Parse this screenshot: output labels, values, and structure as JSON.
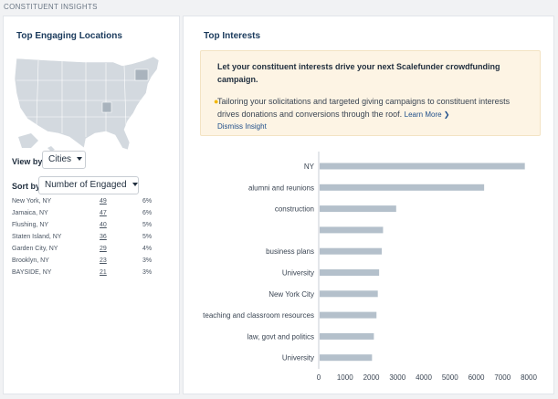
{
  "section_title": "CONSTITUENT INSIGHTS",
  "locations": {
    "title": "Top Engaging Locations",
    "view_by_label": "View by",
    "view_by_value": "Cities",
    "sort_by_label": "Sort by",
    "sort_by_value": "Number of Engaged",
    "rows": [
      {
        "name": "New York, NY",
        "count": "49",
        "pct": "6%"
      },
      {
        "name": "Jamaica, NY",
        "count": "47",
        "pct": "6%"
      },
      {
        "name": "Flushing, NY",
        "count": "40",
        "pct": "5%"
      },
      {
        "name": "Staten Island, NY",
        "count": "36",
        "pct": "5%"
      },
      {
        "name": "Garden City, NY",
        "count": "29",
        "pct": "4%"
      },
      {
        "name": "Brooklyn, NY",
        "count": "23",
        "pct": "3%"
      },
      {
        "name": "BAYSIDE, NY",
        "count": "21",
        "pct": "3%"
      }
    ]
  },
  "interests": {
    "title": "Top Interests",
    "insight_headline": "Let your constituent interests drive your next Scalefunder crowdfunding campaign.",
    "insight_body": "Tailoring your solicitations and targeted giving campaigns to constituent interests drives donations and conversions through the roof.",
    "learn_more": "Learn More",
    "dismiss": "Dismiss Insight"
  },
  "chart_data": {
    "type": "bar",
    "orientation": "horizontal",
    "categories": [
      "NY",
      "alumni and reunions",
      "construction",
      "",
      "business plans",
      "University",
      "New York City",
      "teaching and classroom resources",
      "law, govt and politics",
      "University"
    ],
    "values": [
      7850,
      6300,
      2950,
      2450,
      2400,
      2300,
      2250,
      2200,
      2100,
      2030
    ],
    "xlim": [
      0,
      8000
    ],
    "xticks": [
      0,
      1000,
      2000,
      3000,
      4000,
      5000,
      6000,
      7000,
      8000
    ],
    "bar_color": "#b4c0cb",
    "grid": false
  },
  "colors": {
    "title": "#1a3a5c",
    "map_fill": "#d3d9df",
    "map_highlight": "#a9b3bd",
    "insight_bg": "#fdf4e4"
  }
}
